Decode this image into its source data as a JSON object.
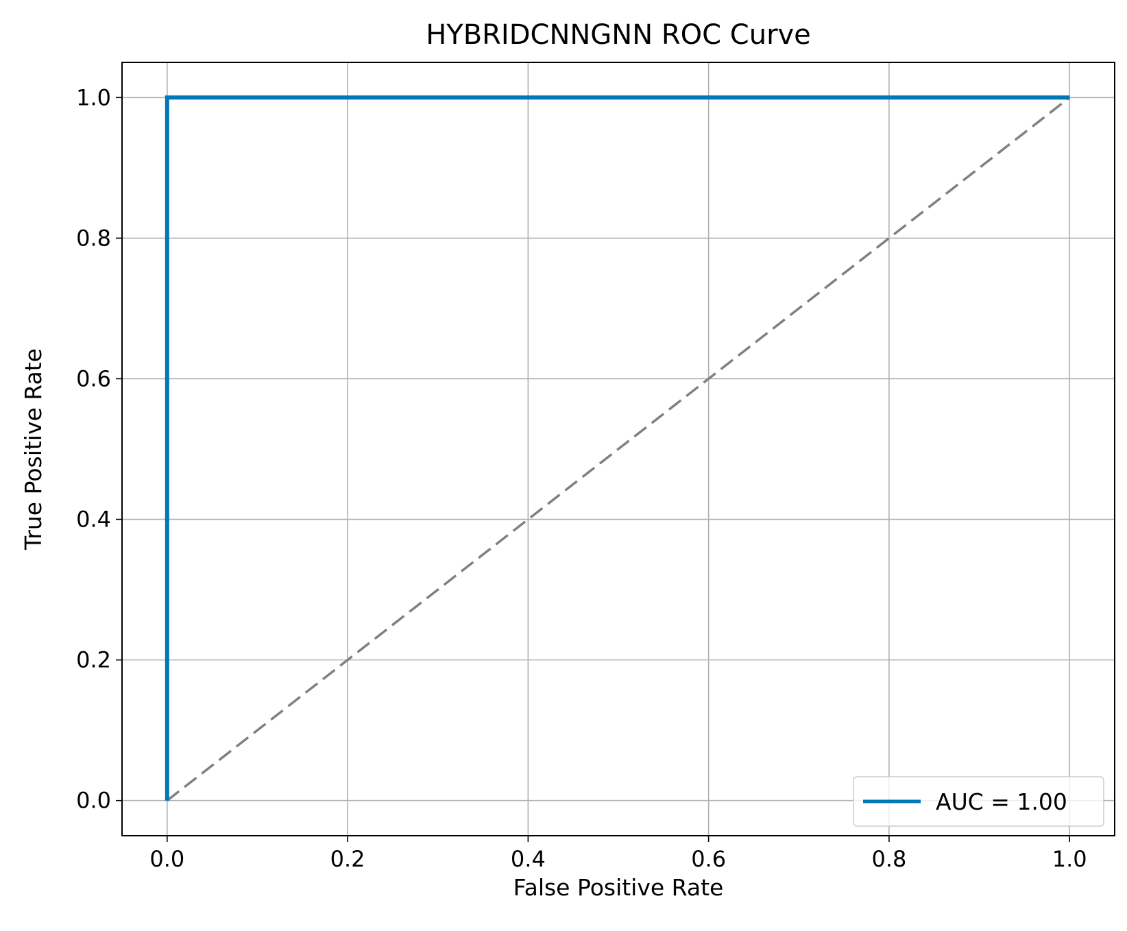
{
  "chart_data": {
    "type": "line",
    "title": "HYBRIDCNNGNN ROC Curve",
    "xlabel": "False Positive Rate",
    "ylabel": "True Positive Rate",
    "xlim": [
      -0.05,
      1.05
    ],
    "ylim": [
      -0.05,
      1.05
    ],
    "xticks": [
      "0.0",
      "0.2",
      "0.4",
      "0.6",
      "0.8",
      "1.0"
    ],
    "yticks": [
      "0.0",
      "0.2",
      "0.4",
      "0.6",
      "0.8",
      "1.0"
    ],
    "grid": true,
    "legend_position": "lower-right",
    "series": [
      {
        "name": "AUC = 1.00",
        "color": "#0077b6",
        "style": "solid",
        "x": [
          0.0,
          0.0,
          1.0
        ],
        "y": [
          0.0,
          1.0,
          1.0
        ]
      },
      {
        "color": "#808080",
        "style": "dashed",
        "x": [
          0.0,
          1.0
        ],
        "y": [
          0.0,
          1.0
        ]
      }
    ]
  }
}
